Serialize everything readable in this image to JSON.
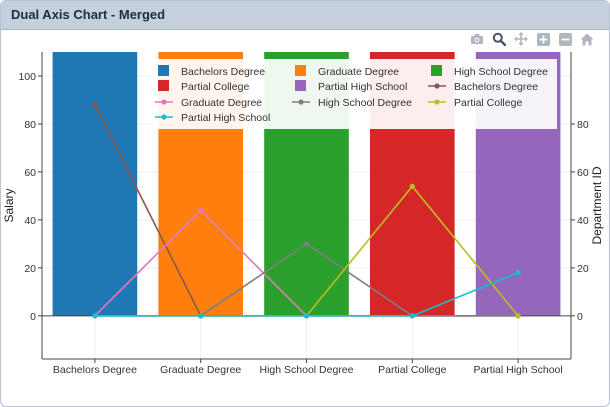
{
  "window": {
    "title": "Dual Axis Chart - Merged"
  },
  "toolbar": {
    "buttons": [
      {
        "name": "camera-icon"
      },
      {
        "name": "zoom-icon"
      },
      {
        "name": "pan-icon"
      },
      {
        "name": "zoom-in-icon"
      },
      {
        "name": "zoom-out-icon"
      },
      {
        "name": "home-icon"
      }
    ]
  },
  "chart_data": {
    "type": "bar",
    "categories": [
      "Bachelors Degree",
      "Graduate Degree",
      "High School Degree",
      "Partial College",
      "Partial High School"
    ],
    "ylabel": "Salary",
    "y2label": "Department ID",
    "ylim": [
      -18,
      110
    ],
    "y2lim": [
      -18,
      110
    ],
    "yticks": [
      0,
      20,
      40,
      60,
      80,
      100
    ],
    "y2ticks": [
      0,
      20,
      40,
      60,
      80
    ],
    "grid": true,
    "legend_position": "top-right inside",
    "series": [
      {
        "name": "Bachelors Degree",
        "kind": "bar",
        "color": "#1f77b4",
        "values": [
          110,
          0,
          0,
          0,
          0
        ]
      },
      {
        "name": "Graduate Degree",
        "kind": "bar",
        "color": "#ff7f0e",
        "values": [
          0,
          110,
          0,
          0,
          0
        ]
      },
      {
        "name": "High School Degree",
        "kind": "bar",
        "color": "#2ca02c",
        "values": [
          0,
          0,
          110,
          0,
          0
        ]
      },
      {
        "name": "Partial College",
        "kind": "bar",
        "color": "#d62728",
        "values": [
          0,
          0,
          0,
          110,
          0
        ]
      },
      {
        "name": "Partial High School",
        "kind": "bar",
        "color": "#9467bd",
        "values": [
          0,
          0,
          0,
          0,
          110
        ]
      },
      {
        "name": "Bachelors Degree",
        "kind": "line",
        "color": "#8c564b",
        "values": [
          88,
          0,
          0,
          0,
          0
        ]
      },
      {
        "name": "Graduate Degree",
        "kind": "line",
        "color": "#e377c2",
        "values": [
          0,
          44,
          0,
          0,
          0
        ]
      },
      {
        "name": "High School Degree",
        "kind": "line",
        "color": "#7f7f7f",
        "values": [
          0,
          0,
          30,
          0,
          0
        ]
      },
      {
        "name": "Partial College",
        "kind": "line",
        "color": "#bcbd22",
        "values": [
          0,
          0,
          0,
          54,
          0
        ]
      },
      {
        "name": "Partial High School",
        "kind": "line",
        "color": "#17becf",
        "values": [
          0,
          0,
          0,
          0,
          18
        ]
      }
    ],
    "legend": [
      "Bachelors Degree",
      "Graduate Degree",
      "High School Degree",
      "Partial College",
      "Partial High School",
      "Bachelors Degree",
      "Graduate Degree",
      "High School Degree",
      "Partial College",
      "Partial High School"
    ]
  }
}
